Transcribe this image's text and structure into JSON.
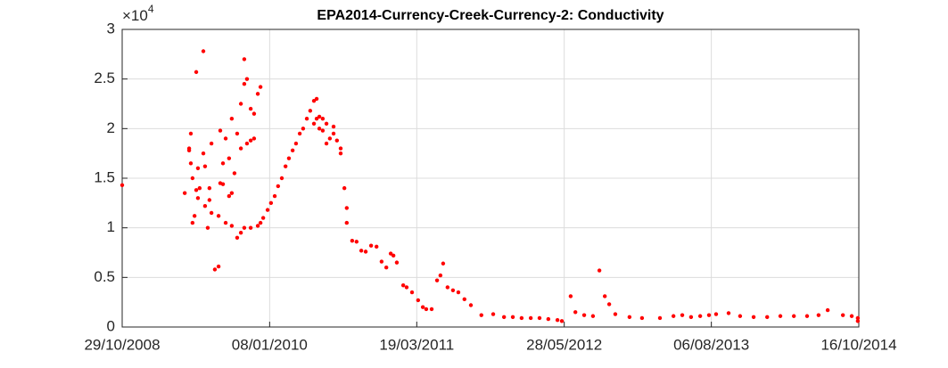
{
  "chart_data": {
    "type": "scatter",
    "title": "EPA2014-Currency-Creek-Currency-2: Conductivity",
    "y_multiplier": "×10",
    "y_multiplier_exponent": "4",
    "xlim": [
      "29/10/2008",
      "16/10/2014"
    ],
    "xticks": [
      "29/10/2008",
      "08/01/2010",
      "19/03/2011",
      "28/05/2012",
      "06/08/2013",
      "16/10/2014"
    ],
    "ylim": [
      0,
      3
    ],
    "yticks": [
      0,
      0.5,
      1,
      1.5,
      2,
      2.5,
      3
    ],
    "grid": true,
    "color": "#ff0000",
    "x": [
      "29/10/2008",
      "02/05/2009",
      "15/05/2009",
      "15/05/2009",
      "20/05/2009",
      "20/05/2009",
      "25/05/2009",
      "25/05/2009",
      "31/05/2009",
      "05/06/2009",
      "05/06/2009",
      "10/06/2009",
      "10/06/2009",
      "15/06/2009",
      "26/06/2009",
      "26/06/2009",
      "01/07/2009",
      "01/07/2009",
      "09/07/2009",
      "14/07/2009",
      "14/07/2009",
      "20/07/2009",
      "20/07/2009",
      "30/07/2009",
      "10/08/2009",
      "10/08/2009",
      "15/08/2009",
      "15/08/2009",
      "23/08/2009",
      "23/08/2009",
      "31/08/2009",
      "31/08/2009",
      "10/09/2009",
      "10/09/2009",
      "18/09/2009",
      "18/09/2009",
      "18/09/2009",
      "26/09/2009",
      "04/10/2009",
      "04/10/2009",
      "15/10/2009",
      "15/10/2009",
      "15/10/2009",
      "25/10/2009",
      "25/10/2009",
      "25/10/2009",
      "02/11/2009",
      "02/11/2009",
      "13/11/2009",
      "13/11/2009",
      "13/11/2009",
      "23/11/2009",
      "23/11/2009",
      "04/12/2009",
      "04/12/2009",
      "12/12/2009",
      "12/12/2009",
      "20/12/2009",
      "02/01/2010",
      "12/01/2010",
      "23/01/2010",
      "02/02/2010",
      "13/02/2010",
      "24/02/2010",
      "06/03/2010",
      "17/03/2010",
      "27/03/2010",
      "07/04/2010",
      "17/04/2010",
      "28/04/2010",
      "08/05/2010",
      "19/05/2010",
      "19/05/2010",
      "27/05/2010",
      "27/05/2010",
      "04/06/2010",
      "04/06/2010",
      "14/06/2010",
      "14/06/2010",
      "25/06/2010",
      "25/06/2010",
      "05/07/2010",
      "16/07/2010",
      "16/07/2010",
      "26/07/2010",
      "06/08/2010",
      "06/08/2010",
      "17/08/2010",
      "24/08/2010",
      "24/08/2010",
      "09/09/2010",
      "22/09/2010",
      "06/10/2010",
      "19/10/2010",
      "04/11/2010",
      "20/11/2010",
      "05/12/2010",
      "19/12/2010",
      "01/01/2011",
      "09/01/2011",
      "19/01/2011",
      "07/02/2011",
      "17/02/2011",
      "05/03/2011",
      "23/03/2011",
      "06/04/2011",
      "16/04/2011",
      "02/05/2011",
      "18/05/2011",
      "28/05/2011",
      "05/06/2011",
      "18/06/2011",
      "04/07/2011",
      "20/07/2011",
      "07/08/2011",
      "26/08/2011",
      "26/09/2011",
      "31/10/2011",
      "02/12/2011",
      "28/12/2011",
      "23/01/2012",
      "19/02/2012",
      "16/03/2012",
      "11/04/2012",
      "08/05/2012",
      "21/05/2012",
      "16/06/2012",
      "30/06/2012",
      "26/07/2012",
      "21/08/2012",
      "09/09/2012",
      "25/09/2012",
      "08/10/2012",
      "26/10/2012",
      "07/12/2012",
      "13/01/2013",
      "07/03/2013",
      "16/04/2013",
      "12/05/2013",
      "07/06/2013",
      "04/07/2013",
      "30/07/2013",
      "20/08/2013",
      "26/09/2013",
      "30/10/2013",
      "09/12/2013",
      "18/01/2014",
      "26/02/2014",
      "07/04/2014",
      "16/05/2014",
      "19/06/2014",
      "16/07/2014",
      "30/08/2014",
      "25/09/2014",
      "13/10/2014",
      "13/10/2014"
    ],
    "values": [
      1.43,
      1.35,
      1.78,
      1.8,
      1.95,
      1.65,
      1.05,
      1.5,
      1.12,
      1.38,
      2.57,
      1.6,
      1.3,
      1.4,
      2.78,
      1.75,
      1.22,
      1.62,
      1.0,
      1.28,
      1.4,
      1.85,
      1.15,
      0.58,
      0.61,
      1.12,
      1.98,
      1.45,
      1.65,
      1.44,
      1.9,
      1.05,
      1.7,
      1.32,
      1.35,
      2.1,
      1.02,
      1.55,
      0.9,
      1.95,
      0.95,
      1.8,
      2.25,
      2.45,
      2.7,
      1.0,
      2.5,
      1.85,
      2.2,
      1.88,
      1.0,
      2.15,
      1.9,
      2.35,
      1.02,
      2.42,
      1.05,
      1.1,
      1.18,
      1.25,
      1.32,
      1.42,
      1.5,
      1.62,
      1.7,
      1.78,
      1.85,
      1.95,
      2.0,
      2.1,
      2.18,
      2.28,
      2.05,
      2.3,
      2.1,
      2.12,
      2.0,
      2.1,
      1.98,
      2.05,
      1.85,
      1.9,
      1.95,
      2.02,
      1.88,
      1.8,
      1.75,
      1.4,
      1.2,
      1.05,
      0.87,
      0.86,
      0.77,
      0.76,
      0.82,
      0.81,
      0.66,
      0.6,
      0.74,
      0.72,
      0.65,
      0.42,
      0.4,
      0.35,
      0.27,
      0.2,
      0.18,
      0.18,
      0.47,
      0.52,
      0.64,
      0.4,
      0.37,
      0.35,
      0.28,
      0.22,
      0.12,
      0.13,
      0.1,
      0.1,
      0.09,
      0.09,
      0.09,
      0.08,
      0.07,
      0.06,
      0.31,
      0.15,
      0.12,
      0.11,
      0.57,
      0.31,
      0.23,
      0.13,
      0.1,
      0.09,
      0.09,
      0.11,
      0.12,
      0.1,
      0.11,
      0.12,
      0.13,
      0.14,
      0.11,
      0.1,
      0.1,
      0.11,
      0.11,
      0.11,
      0.12,
      0.17,
      0.12,
      0.11,
      0.09,
      0.06
    ]
  }
}
